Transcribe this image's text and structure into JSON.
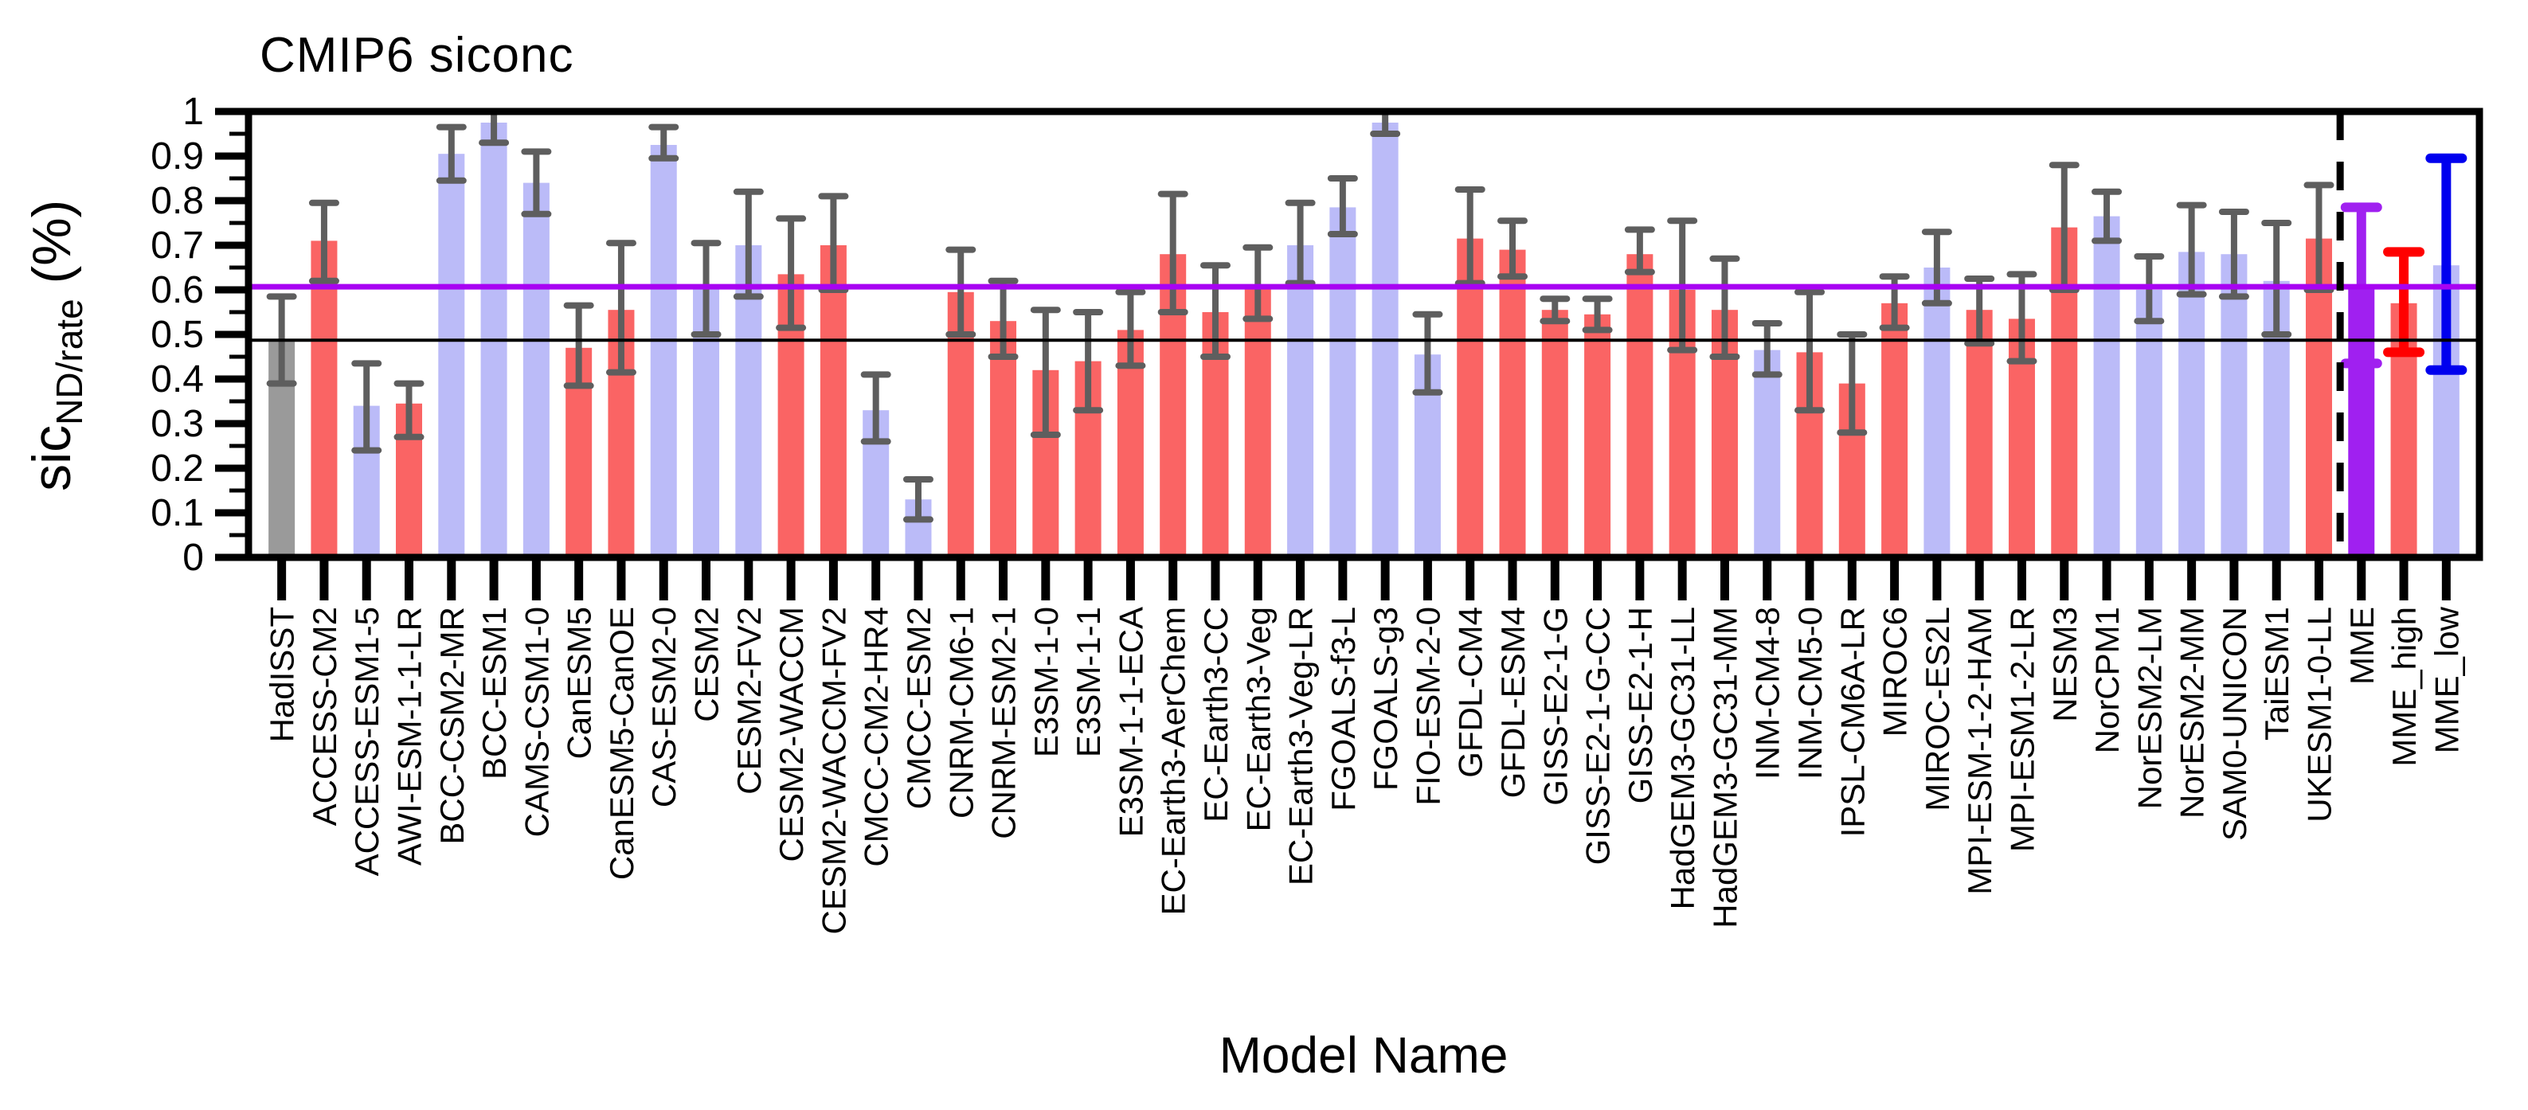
{
  "title": "CMIP6 siconc",
  "axes": {
    "ylabel_main": "sic",
    "ylabel_sub": "ND/rate",
    "ylabel_unit": " (%)",
    "xlabel": "Model Name",
    "ylim": [
      0,
      1
    ],
    "ytick_values": [
      0,
      0.1,
      0.2,
      0.3,
      0.4,
      0.5,
      0.6,
      0.7,
      0.8,
      0.9,
      1
    ],
    "ytick_labels": [
      "0",
      "0.1",
      "0.2",
      "0.3",
      "0.4",
      "0.5",
      "0.6",
      "0.7",
      "0.8",
      "0.9",
      "1"
    ],
    "minor_tick_step": 0.05,
    "grid": "off",
    "legend": "none"
  },
  "colors": {
    "bar_obs": "#9A9A9A",
    "bar_red": "#FA6464",
    "bar_blue": "#BBBBF8",
    "bar_mme": "#A020F0",
    "err_default": "#5E5E5E",
    "err_mme": "#A020F0",
    "err_mme_high": "#FF0000",
    "err_mme_low": "#0000EE",
    "ref_observed": "#000000",
    "ref_mme_mean": "#A803F2"
  },
  "reference_lines": [
    {
      "name": "observed",
      "value": 0.487,
      "color_key": "ref_observed",
      "width": 4
    },
    {
      "name": "mme-mean",
      "value": 0.607,
      "color_key": "ref_mme_mean",
      "width": 7
    }
  ],
  "separator": {
    "style": "dashed",
    "after_model": "UKESM1-0-LL"
  },
  "chart_data": {
    "type": "bar",
    "title": "CMIP6 siconc",
    "xlabel": "Model Name",
    "ylabel": "sic_ND/rate (%)",
    "ylim": [
      0,
      1
    ],
    "bars": [
      {
        "model": "HadISST",
        "group": "obs",
        "value": 0.485,
        "lo": 0.39,
        "hi": 0.585
      },
      {
        "model": "ACCESS-CM2",
        "group": "model_red",
        "value": 0.71,
        "lo": 0.62,
        "hi": 0.795
      },
      {
        "model": "ACCESS-ESM1-5",
        "group": "model_blue",
        "value": 0.34,
        "lo": 0.24,
        "hi": 0.435
      },
      {
        "model": "AWI-ESM-1-1-LR",
        "group": "model_red",
        "value": 0.345,
        "lo": 0.27,
        "hi": 0.39
      },
      {
        "model": "BCC-CSM2-MR",
        "group": "model_blue",
        "value": 0.905,
        "lo": 0.845,
        "hi": 0.965
      },
      {
        "model": "BCC-ESM1",
        "group": "model_blue",
        "value": 0.975,
        "lo": 0.93,
        "hi": 1.02
      },
      {
        "model": "CAMS-CSM1-0",
        "group": "model_blue",
        "value": 0.84,
        "lo": 0.77,
        "hi": 0.91
      },
      {
        "model": "CanESM5",
        "group": "model_red",
        "value": 0.47,
        "lo": 0.385,
        "hi": 0.565
      },
      {
        "model": "CanESM5-CanOE",
        "group": "model_red",
        "value": 0.555,
        "lo": 0.415,
        "hi": 0.705
      },
      {
        "model": "CAS-ESM2-0",
        "group": "model_blue",
        "value": 0.925,
        "lo": 0.895,
        "hi": 0.965
      },
      {
        "model": "CESM2",
        "group": "model_blue",
        "value": 0.605,
        "lo": 0.5,
        "hi": 0.705
      },
      {
        "model": "CESM2-FV2",
        "group": "model_blue",
        "value": 0.7,
        "lo": 0.585,
        "hi": 0.82
      },
      {
        "model": "CESM2-WACCM",
        "group": "model_red",
        "value": 0.635,
        "lo": 0.515,
        "hi": 0.76
      },
      {
        "model": "CESM2-WACCM-FV2",
        "group": "model_red",
        "value": 0.7,
        "lo": 0.6,
        "hi": 0.81
      },
      {
        "model": "CMCC-CM2-HR4",
        "group": "model_blue",
        "value": 0.33,
        "lo": 0.26,
        "hi": 0.41
      },
      {
        "model": "CMCC-ESM2",
        "group": "model_blue",
        "value": 0.13,
        "lo": 0.085,
        "hi": 0.175
      },
      {
        "model": "CNRM-CM6-1",
        "group": "model_red",
        "value": 0.595,
        "lo": 0.5,
        "hi": 0.69
      },
      {
        "model": "CNRM-ESM2-1",
        "group": "model_red",
        "value": 0.53,
        "lo": 0.45,
        "hi": 0.62
      },
      {
        "model": "E3SM-1-0",
        "group": "model_red",
        "value": 0.42,
        "lo": 0.275,
        "hi": 0.555
      },
      {
        "model": "E3SM-1-1",
        "group": "model_red",
        "value": 0.44,
        "lo": 0.33,
        "hi": 0.55
      },
      {
        "model": "E3SM-1-1-ECA",
        "group": "model_red",
        "value": 0.51,
        "lo": 0.43,
        "hi": 0.595
      },
      {
        "model": "EC-Earth3-AerChem",
        "group": "model_red",
        "value": 0.68,
        "lo": 0.55,
        "hi": 0.815
      },
      {
        "model": "EC-Earth3-CC",
        "group": "model_red",
        "value": 0.55,
        "lo": 0.45,
        "hi": 0.655
      },
      {
        "model": "EC-Earth3-Veg",
        "group": "model_red",
        "value": 0.61,
        "lo": 0.535,
        "hi": 0.695
      },
      {
        "model": "EC-Earth3-Veg-LR",
        "group": "model_blue",
        "value": 0.7,
        "lo": 0.615,
        "hi": 0.795
      },
      {
        "model": "FGOALS-f3-L",
        "group": "model_blue",
        "value": 0.785,
        "lo": 0.725,
        "hi": 0.85
      },
      {
        "model": "FGOALS-g3",
        "group": "model_blue",
        "value": 0.975,
        "lo": 0.95,
        "hi": 1.0
      },
      {
        "model": "FIO-ESM-2-0",
        "group": "model_blue",
        "value": 0.455,
        "lo": 0.37,
        "hi": 0.545
      },
      {
        "model": "GFDL-CM4",
        "group": "model_red",
        "value": 0.715,
        "lo": 0.615,
        "hi": 0.825
      },
      {
        "model": "GFDL-ESM4",
        "group": "model_red",
        "value": 0.69,
        "lo": 0.63,
        "hi": 0.755
      },
      {
        "model": "GISS-E2-1-G",
        "group": "model_red",
        "value": 0.555,
        "lo": 0.53,
        "hi": 0.58
      },
      {
        "model": "GISS-E2-1-G-CC",
        "group": "model_red",
        "value": 0.545,
        "lo": 0.51,
        "hi": 0.58
      },
      {
        "model": "GISS-E2-1-H",
        "group": "model_red",
        "value": 0.68,
        "lo": 0.64,
        "hi": 0.735
      },
      {
        "model": "HadGEM3-GC31-LL",
        "group": "model_red",
        "value": 0.6,
        "lo": 0.465,
        "hi": 0.755
      },
      {
        "model": "HadGEM3-GC31-MM",
        "group": "model_red",
        "value": 0.555,
        "lo": 0.45,
        "hi": 0.67
      },
      {
        "model": "INM-CM4-8",
        "group": "model_blue",
        "value": 0.465,
        "lo": 0.41,
        "hi": 0.525
      },
      {
        "model": "INM-CM5-0",
        "group": "model_red",
        "value": 0.46,
        "lo": 0.33,
        "hi": 0.595
      },
      {
        "model": "IPSL-CM6A-LR",
        "group": "model_red",
        "value": 0.39,
        "lo": 0.28,
        "hi": 0.5
      },
      {
        "model": "MIROC6",
        "group": "model_red",
        "value": 0.57,
        "lo": 0.515,
        "hi": 0.63
      },
      {
        "model": "MIROC-ES2L",
        "group": "model_blue",
        "value": 0.65,
        "lo": 0.57,
        "hi": 0.73
      },
      {
        "model": "MPI-ESM-1-2-HAM",
        "group": "model_red",
        "value": 0.555,
        "lo": 0.48,
        "hi": 0.625
      },
      {
        "model": "MPI-ESM1-2-LR",
        "group": "model_red",
        "value": 0.535,
        "lo": 0.44,
        "hi": 0.635
      },
      {
        "model": "NESM3",
        "group": "model_red",
        "value": 0.74,
        "lo": 0.6,
        "hi": 0.88
      },
      {
        "model": "NorCPM1",
        "group": "model_blue",
        "value": 0.765,
        "lo": 0.71,
        "hi": 0.82
      },
      {
        "model": "NorESM2-LM",
        "group": "model_blue",
        "value": 0.6,
        "lo": 0.53,
        "hi": 0.675
      },
      {
        "model": "NorESM2-MM",
        "group": "model_blue",
        "value": 0.685,
        "lo": 0.59,
        "hi": 0.79
      },
      {
        "model": "SAM0-UNICON",
        "group": "model_blue",
        "value": 0.68,
        "lo": 0.585,
        "hi": 0.775
      },
      {
        "model": "TaiESM1",
        "group": "model_blue",
        "value": 0.62,
        "lo": 0.5,
        "hi": 0.75
      },
      {
        "model": "UKESM1-0-LL",
        "group": "model_red",
        "value": 0.715,
        "lo": 0.6,
        "hi": 0.835
      },
      {
        "model": "MME",
        "group": "mme",
        "value": 0.605,
        "lo": 0.435,
        "hi": 0.785
      },
      {
        "model": "MME_high",
        "group": "mme_high",
        "value": 0.57,
        "lo": 0.46,
        "hi": 0.685
      },
      {
        "model": "MME_low",
        "group": "mme_low",
        "value": 0.655,
        "lo": 0.42,
        "hi": 0.895
      }
    ]
  }
}
